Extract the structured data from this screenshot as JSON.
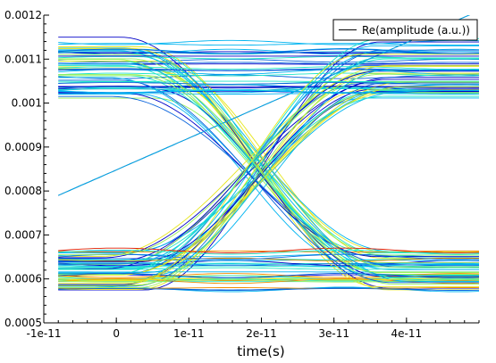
{
  "chart_data": {
    "type": "line",
    "title": "",
    "xlabel": "time(s)",
    "ylabel": "",
    "xlim": [
      -1e-11,
      5e-11
    ],
    "ylim": [
      0.0005,
      0.0012
    ],
    "x_tick_values": [
      -1e-11,
      0,
      1e-11,
      2e-11,
      3e-11,
      4e-11
    ],
    "x_tick_labels": [
      "-1e-11",
      "0",
      "1e-11",
      "2e-11",
      "3e-11",
      "4e-11"
    ],
    "y_tick_values": [
      0.0005,
      0.0006,
      0.0007,
      0.0008,
      0.0009,
      0.001,
      0.0011,
      0.0012
    ],
    "y_tick_labels": [
      "0.0005",
      "0.0006",
      "0.0007",
      "0.0008",
      "0.0009",
      "0.001",
      "0.0011",
      "0.0012"
    ],
    "legend": {
      "label": "Re(amplitude (a.u.))",
      "position": "top-right"
    },
    "grid": false,
    "colormap": [
      "#0000c8",
      "#0a64dc",
      "#00b4f0",
      "#1ee6c8",
      "#96f05a",
      "#e6e61e",
      "#f08c00",
      "#dc1e00"
    ],
    "eye_diagram": {
      "t_start": -8e-12,
      "t_end": 5e-11,
      "crossing_time": 1.95e-11,
      "high_level": 0.00106,
      "low_level": 0.00062,
      "crossing_level": 0.00085,
      "approx_trace_count": 130
    }
  }
}
